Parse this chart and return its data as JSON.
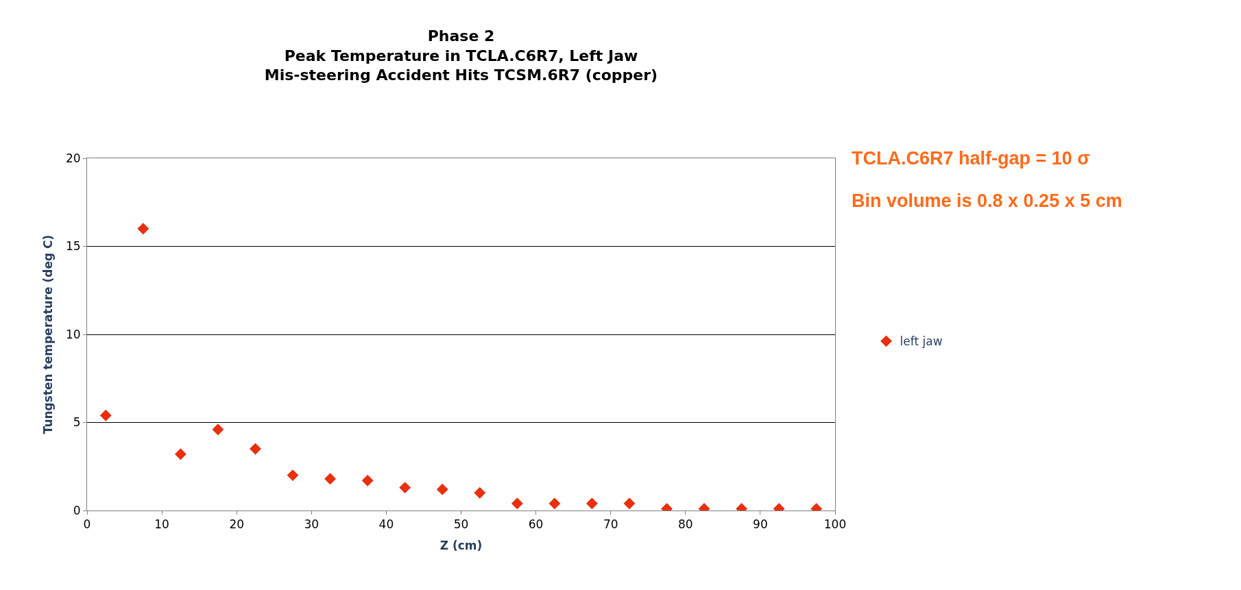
{
  "chart_data": {
    "type": "scatter",
    "title": "Phase 2\nPeak Temperature in TCLA.C6R7, Left Jaw\nMis-steering Accident Hits TCSM.6R7 (copper)",
    "xlabel": "Z (cm)",
    "ylabel": "Tungsten temperature (deg C)",
    "x": [
      2.5,
      7.5,
      12.5,
      17.5,
      22.5,
      27.5,
      32.5,
      37.5,
      42.5,
      47.5,
      52.5,
      57.5,
      62.5,
      67.5,
      72.5,
      77.5,
      82.5,
      87.5,
      92.5,
      97.5
    ],
    "series": [
      {
        "name": "left jaw",
        "color": "#e8300e",
        "values": [
          5.4,
          16.0,
          3.2,
          4.6,
          3.5,
          2.0,
          1.8,
          1.7,
          1.3,
          1.2,
          1.0,
          0.4,
          0.4,
          0.4,
          0.4,
          0.1,
          0.1,
          0.1,
          0.1,
          0.1
        ]
      }
    ],
    "xlim": [
      0,
      100
    ],
    "xticks": [
      0,
      10,
      20,
      30,
      40,
      50,
      60,
      70,
      80,
      90,
      100
    ],
    "ylim": [
      0,
      20
    ],
    "yticks": [
      0,
      5,
      10,
      15,
      20
    ],
    "grid": "y",
    "legend": "right",
    "marker": "diamond",
    "annotations": [
      "TCLA.C6R7 half-gap = 10 σ",
      "Bin volume is 0.8 x 0.25 x 5 cm"
    ]
  }
}
